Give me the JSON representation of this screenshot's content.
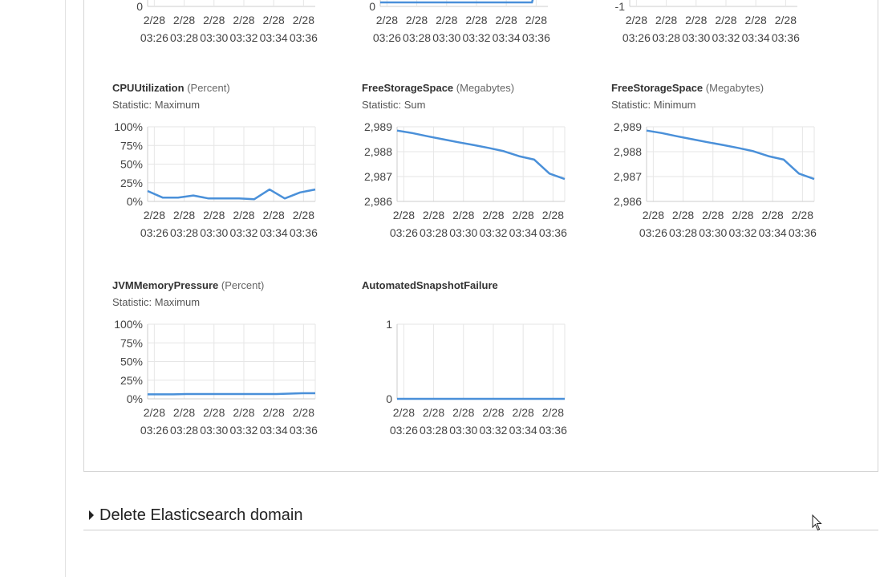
{
  "charts_top_row": [
    {
      "name": "top-chart-1",
      "y_ticks": [
        "0"
      ],
      "x_ticks": [
        [
          "2/28",
          "03:26"
        ],
        [
          "2/28",
          "03:28"
        ],
        [
          "2/28",
          "03:30"
        ],
        [
          "2/28",
          "03:32"
        ],
        [
          "2/28",
          "03:34"
        ],
        [
          "2/28",
          "03:36"
        ]
      ]
    },
    {
      "name": "top-chart-2",
      "y_ticks": [
        "0"
      ],
      "x_ticks": [
        [
          "2/28",
          "03:26"
        ],
        [
          "2/28",
          "03:28"
        ],
        [
          "2/28",
          "03:30"
        ],
        [
          "2/28",
          "03:32"
        ],
        [
          "2/28",
          "03:34"
        ],
        [
          "2/28",
          "03:36"
        ]
      ]
    },
    {
      "name": "top-chart-3",
      "y_ticks": [
        "-1"
      ],
      "x_ticks": [
        [
          "2/28",
          "03:26"
        ],
        [
          "2/28",
          "03:28"
        ],
        [
          "2/28",
          "03:30"
        ],
        [
          "2/28",
          "03:32"
        ],
        [
          "2/28",
          "03:34"
        ],
        [
          "2/28",
          "03:36"
        ]
      ]
    }
  ],
  "charts": [
    {
      "metric": "CPUUtilization",
      "unit": "(Percent)",
      "statistic": "Statistic: Maximum",
      "ylim": [
        0,
        100
      ],
      "y_ticks": [
        {
          "label": "100%",
          "value": 100
        },
        {
          "label": "75%",
          "value": 75
        },
        {
          "label": "50%",
          "value": 50
        },
        {
          "label": "25%",
          "value": 25
        },
        {
          "label": "0%",
          "value": 0
        }
      ],
      "x_ticks": [
        [
          "2/28",
          "03:26"
        ],
        [
          "2/28",
          "03:28"
        ],
        [
          "2/28",
          "03:30"
        ],
        [
          "2/28",
          "03:32"
        ],
        [
          "2/28",
          "03:34"
        ],
        [
          "2/28",
          "03:36"
        ]
      ],
      "values": [
        14,
        5,
        5,
        8,
        4,
        4,
        4,
        3,
        16,
        4,
        12,
        16
      ]
    },
    {
      "metric": "FreeStorageSpace",
      "unit": "(Megabytes)",
      "statistic": "Statistic: Sum",
      "ylim": [
        2986,
        2989
      ],
      "y_ticks": [
        {
          "label": "2,989",
          "value": 2989
        },
        {
          "label": "2,988",
          "value": 2988
        },
        {
          "label": "2,987",
          "value": 2987
        },
        {
          "label": "2,986",
          "value": 2986
        }
      ],
      "x_ticks": [
        [
          "2/28",
          "03:26"
        ],
        [
          "2/28",
          "03:28"
        ],
        [
          "2/28",
          "03:30"
        ],
        [
          "2/28",
          "03:32"
        ],
        [
          "2/28",
          "03:34"
        ],
        [
          "2/28",
          "03:36"
        ]
      ],
      "values": [
        2988.85,
        2988.75,
        2988.62,
        2988.5,
        2988.38,
        2988.27,
        2988.15,
        2988.02,
        2987.82,
        2987.68,
        2987.12,
        2986.9
      ]
    },
    {
      "metric": "FreeStorageSpace",
      "unit": "(Megabytes)",
      "statistic": "Statistic: Minimum",
      "ylim": [
        2986,
        2989
      ],
      "y_ticks": [
        {
          "label": "2,989",
          "value": 2989
        },
        {
          "label": "2,988",
          "value": 2988
        },
        {
          "label": "2,987",
          "value": 2987
        },
        {
          "label": "2,986",
          "value": 2986
        }
      ],
      "x_ticks": [
        [
          "2/28",
          "03:26"
        ],
        [
          "2/28",
          "03:28"
        ],
        [
          "2/28",
          "03:30"
        ],
        [
          "2/28",
          "03:32"
        ],
        [
          "2/28",
          "03:34"
        ],
        [
          "2/28",
          "03:36"
        ]
      ],
      "values": [
        2988.85,
        2988.75,
        2988.62,
        2988.5,
        2988.38,
        2988.27,
        2988.15,
        2988.02,
        2987.82,
        2987.68,
        2987.12,
        2986.9
      ]
    },
    {
      "metric": "JVMMemoryPressure",
      "unit": "(Percent)",
      "statistic": "Statistic: Maximum",
      "ylim": [
        0,
        100
      ],
      "y_ticks": [
        {
          "label": "100%",
          "value": 100
        },
        {
          "label": "75%",
          "value": 75
        },
        {
          "label": "50%",
          "value": 50
        },
        {
          "label": "25%",
          "value": 25
        },
        {
          "label": "0%",
          "value": 0
        }
      ],
      "x_ticks": [
        [
          "2/28",
          "03:26"
        ],
        [
          "2/28",
          "03:28"
        ],
        [
          "2/28",
          "03:30"
        ],
        [
          "2/28",
          "03:32"
        ],
        [
          "2/28",
          "03:34"
        ],
        [
          "2/28",
          "03:36"
        ]
      ],
      "values": [
        6,
        6,
        6,
        6.5,
        6.5,
        6.5,
        6.5,
        6.5,
        6.5,
        6.5,
        6.5,
        7,
        7.5,
        7.5
      ]
    },
    {
      "metric": "AutomatedSnapshotFailure",
      "unit": "",
      "statistic": "",
      "ylim": [
        0,
        1
      ],
      "y_ticks": [
        {
          "label": "1",
          "value": 1
        },
        {
          "label": "0",
          "value": 0
        }
      ],
      "x_ticks": [
        [
          "2/28",
          "03:26"
        ],
        [
          "2/28",
          "03:28"
        ],
        [
          "2/28",
          "03:30"
        ],
        [
          "2/28",
          "03:32"
        ],
        [
          "2/28",
          "03:34"
        ],
        [
          "2/28",
          "03:36"
        ]
      ],
      "values": [
        0,
        0,
        0,
        0,
        0,
        0,
        0,
        0,
        0,
        0,
        0,
        0
      ]
    }
  ],
  "delete_section": {
    "label": "Delete Elasticsearch domain"
  },
  "colors": {
    "series_line": "#4a90d9",
    "grid": "#e6e6e6",
    "axis": "#cccccc"
  },
  "icons": {
    "expand": "caret-right-icon",
    "pointer": "mouse-cursor-icon"
  }
}
